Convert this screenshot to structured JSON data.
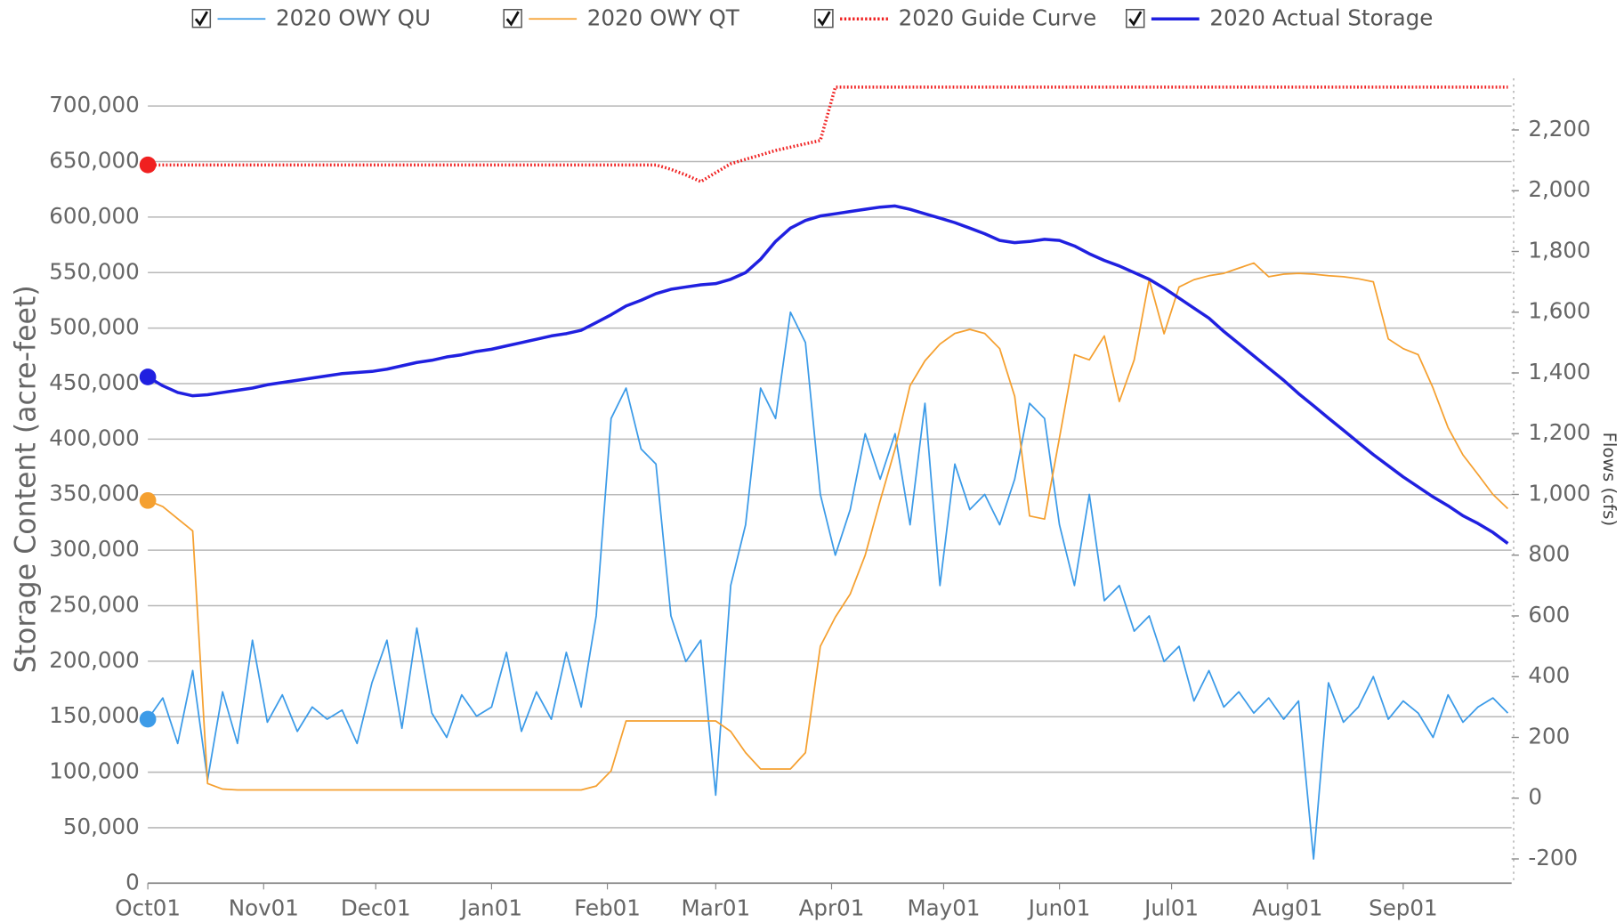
{
  "chart_data": {
    "type": "line",
    "y_label": "Storage Content (acre-feet)",
    "y2_label": "Flows (cfs)",
    "xlim": [
      0,
      365
    ],
    "xticks": [
      {
        "value": 0,
        "label": "Oct01"
      },
      {
        "value": 31,
        "label": "Nov01"
      },
      {
        "value": 61,
        "label": "Dec01"
      },
      {
        "value": 92,
        "label": "Jan01"
      },
      {
        "value": 123,
        "label": "Feb01"
      },
      {
        "value": 152,
        "label": "Mar01"
      },
      {
        "value": 183,
        "label": "Apr01"
      },
      {
        "value": 213,
        "label": "May01"
      },
      {
        "value": 244,
        "label": "Jun01"
      },
      {
        "value": 274,
        "label": "Jul01"
      },
      {
        "value": 305,
        "label": "Aug01"
      },
      {
        "value": 336,
        "label": "Sep01"
      }
    ],
    "ylim": [
      0,
      725000
    ],
    "yticks": [
      0,
      {
        "value": 50000,
        "label": "50,000"
      },
      {
        "value": 100000,
        "label": "100,000"
      },
      {
        "value": 150000,
        "label": "150,000"
      },
      {
        "value": 200000,
        "label": "200,000"
      },
      {
        "value": 250000,
        "label": "250,000"
      },
      {
        "value": 300000,
        "label": "300,000"
      },
      {
        "value": 350000,
        "label": "350,000"
      },
      {
        "value": 400000,
        "label": "400,000"
      },
      {
        "value": 450000,
        "label": "450,000"
      },
      {
        "value": 500000,
        "label": "500,000"
      },
      {
        "value": 550000,
        "label": "550,000"
      },
      {
        "value": 600000,
        "label": "600,000"
      },
      {
        "value": 650000,
        "label": "650,000"
      },
      {
        "value": 700000,
        "label": "700,000"
      }
    ],
    "y2lim": [
      -280,
      2370
    ],
    "y2ticks": [
      -200,
      0,
      200,
      400,
      600,
      800,
      {
        "value": 1000,
        "label": "1,000"
      },
      {
        "value": 1200,
        "label": "1,200"
      },
      {
        "value": 1400,
        "label": "1,400"
      },
      {
        "value": 1600,
        "label": "1,600"
      },
      {
        "value": 1800,
        "label": "1,800"
      },
      {
        "value": 2000,
        "label": "2,000"
      },
      {
        "value": 2200,
        "label": "2,200"
      }
    ],
    "grid": true,
    "legend": "top",
    "x": [
      0,
      4,
      8,
      12,
      16,
      20,
      24,
      28,
      32,
      36,
      40,
      44,
      48,
      52,
      56,
      60,
      64,
      68,
      72,
      76,
      80,
      84,
      88,
      92,
      96,
      100,
      104,
      108,
      112,
      116,
      120,
      124,
      128,
      132,
      136,
      140,
      144,
      148,
      152,
      156,
      160,
      164,
      168,
      172,
      176,
      180,
      184,
      188,
      192,
      196,
      200,
      204,
      208,
      212,
      216,
      220,
      224,
      228,
      232,
      236,
      240,
      244,
      248,
      252,
      256,
      260,
      264,
      268,
      272,
      276,
      280,
      284,
      288,
      292,
      296,
      300,
      304,
      308,
      312,
      316,
      320,
      324,
      328,
      332,
      336,
      340,
      344,
      348,
      352,
      356,
      360,
      364
    ],
    "series": [
      {
        "name": "2020 OWY QU",
        "color": "#3c9be8",
        "axis": "y2",
        "width": 1.5,
        "values": [
          260,
          330,
          180,
          420,
          60,
          350,
          180,
          520,
          250,
          340,
          220,
          300,
          260,
          290,
          180,
          380,
          520,
          230,
          560,
          280,
          200,
          340,
          270,
          300,
          480,
          220,
          350,
          260,
          480,
          300,
          600,
          1250,
          1350,
          1150,
          1100,
          600,
          450,
          520,
          10,
          700,
          900,
          1350,
          1250,
          1600,
          1500,
          1000,
          800,
          950,
          1200,
          1050,
          1200,
          900,
          1300,
          700,
          1100,
          950,
          1000,
          900,
          1050,
          1300,
          1250,
          900,
          700,
          1000,
          650,
          700,
          550,
          600,
          450,
          500,
          320,
          420,
          300,
          350,
          280,
          330,
          260,
          320,
          -200,
          380,
          250,
          300,
          400,
          260,
          320,
          280,
          200,
          340,
          250,
          300,
          330,
          280
        ]
      },
      {
        "name": "2020 OWY QT",
        "color": "#f5a030",
        "axis": "y2",
        "width": 1.5,
        "values": [
          980,
          960,
          920,
          880,
          48,
          30,
          27,
          27,
          27,
          27,
          27,
          27,
          27,
          27,
          27,
          27,
          27,
          27,
          27,
          27,
          27,
          27,
          27,
          27,
          27,
          27,
          27,
          27,
          27,
          27,
          40,
          90,
          254,
          254,
          254,
          254,
          254,
          254,
          254,
          220,
          150,
          96,
          96,
          96,
          150,
          500,
          596,
          672,
          800,
          980,
          1150,
          1358,
          1440,
          1495,
          1530,
          1543,
          1530,
          1480,
          1323,
          929,
          919,
          1186,
          1460,
          1443,
          1522,
          1306,
          1443,
          1707,
          1529,
          1683,
          1707,
          1720,
          1728,
          1745,
          1762,
          1717,
          1725,
          1728,
          1725,
          1720,
          1717,
          1710,
          1700,
          1512,
          1480,
          1460,
          1350,
          1220,
          1130,
          1066,
          1000,
          953
        ]
      },
      {
        "name": "2020 Guide Curve",
        "color": "#f02020",
        "axis": "y",
        "width": 3,
        "dash": true,
        "values": [
          647000,
          647000,
          647000,
          647000,
          647000,
          647000,
          647000,
          647000,
          647000,
          647000,
          647000,
          647000,
          647000,
          647000,
          647000,
          647000,
          647000,
          647000,
          647000,
          647000,
          647000,
          647000,
          647000,
          647000,
          647000,
          647000,
          647000,
          647000,
          647000,
          647000,
          647000,
          647000,
          647000,
          647000,
          647000,
          643000,
          638000,
          632000,
          640000,
          648000,
          652000,
          656000,
          660000,
          663000,
          666000,
          669000,
          717000,
          717000,
          717000,
          717000,
          717000,
          717000,
          717000,
          717000,
          717000,
          717000,
          717000,
          717000,
          717000,
          717000,
          717000,
          717000,
          717000,
          717000,
          717000,
          717000,
          717000,
          717000,
          717000,
          717000,
          717000,
          717000,
          717000,
          717000,
          717000,
          717000,
          717000,
          717000,
          717000,
          717000,
          717000,
          717000,
          717000,
          717000,
          717000,
          717000,
          717000,
          717000,
          717000,
          717000,
          717000,
          717000
        ]
      },
      {
        "name": "2020 Actual Storage",
        "color": "#2020e0",
        "axis": "y",
        "width": 3,
        "values": [
          456000,
          448000,
          442000,
          439000,
          440000,
          442000,
          444000,
          446000,
          449000,
          451000,
          453000,
          455000,
          457000,
          459000,
          460000,
          461000,
          463000,
          466000,
          469000,
          471000,
          474000,
          476000,
          479000,
          481000,
          484000,
          487000,
          490000,
          493000,
          495000,
          498000,
          505000,
          512000,
          520000,
          525000,
          531000,
          535000,
          537000,
          539000,
          540000,
          544000,
          550000,
          562000,
          578000,
          590000,
          597000,
          601000,
          603000,
          605000,
          607000,
          609000,
          610000,
          607000,
          603000,
          599000,
          595000,
          590000,
          585000,
          579000,
          577000,
          578000,
          580000,
          579000,
          574000,
          567000,
          561000,
          556000,
          550000,
          544000,
          536000,
          527000,
          518000,
          509000,
          497000,
          486000,
          475000,
          464000,
          453000,
          441000,
          430000,
          419000,
          408000,
          397000,
          386000,
          376000,
          366000,
          357000,
          348000,
          340000,
          331000,
          324000,
          316000,
          306000
        ]
      }
    ]
  }
}
